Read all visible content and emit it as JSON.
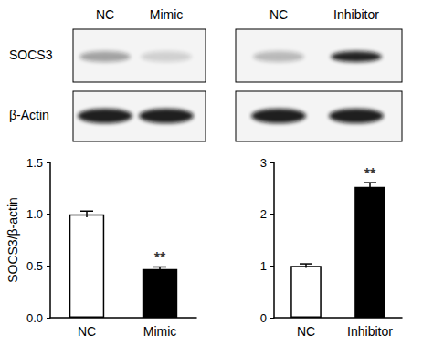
{
  "blot": {
    "lanes_left": [
      "NC",
      "Mimic"
    ],
    "lanes_right": [
      "NC",
      "Inhibitor"
    ],
    "rows": [
      "SOCS3",
      "β-Actin"
    ]
  },
  "chart_data": [
    {
      "type": "bar",
      "y_label": "SOCS3/β-actin",
      "categories": [
        "NC",
        "Mimic"
      ],
      "values": [
        1.0,
        0.47
      ],
      "errors": [
        0.03,
        0.02
      ],
      "colors": [
        "#ffffff",
        "#000000"
      ],
      "ylim": [
        0,
        1.5
      ],
      "yticks": [
        {
          "value": 0,
          "label": "0.0"
        },
        {
          "value": 0.5,
          "label": "0.5"
        },
        {
          "value": 1,
          "label": "1.0"
        },
        {
          "value": 1.5,
          "label": "1.5"
        }
      ],
      "annotations": [
        {
          "category": "Mimic",
          "text": "**"
        }
      ],
      "grid": false
    },
    {
      "type": "bar",
      "categories": [
        "NC",
        "Inhibitor"
      ],
      "values": [
        1.0,
        2.53
      ],
      "errors": [
        0.04,
        0.08
      ],
      "colors": [
        "#ffffff",
        "#000000"
      ],
      "ylim": [
        0,
        3
      ],
      "yticks": [
        0,
        1,
        2,
        3
      ],
      "annotations": [
        {
          "category": "Inhibitor",
          "text": "**"
        }
      ],
      "grid": false
    }
  ]
}
